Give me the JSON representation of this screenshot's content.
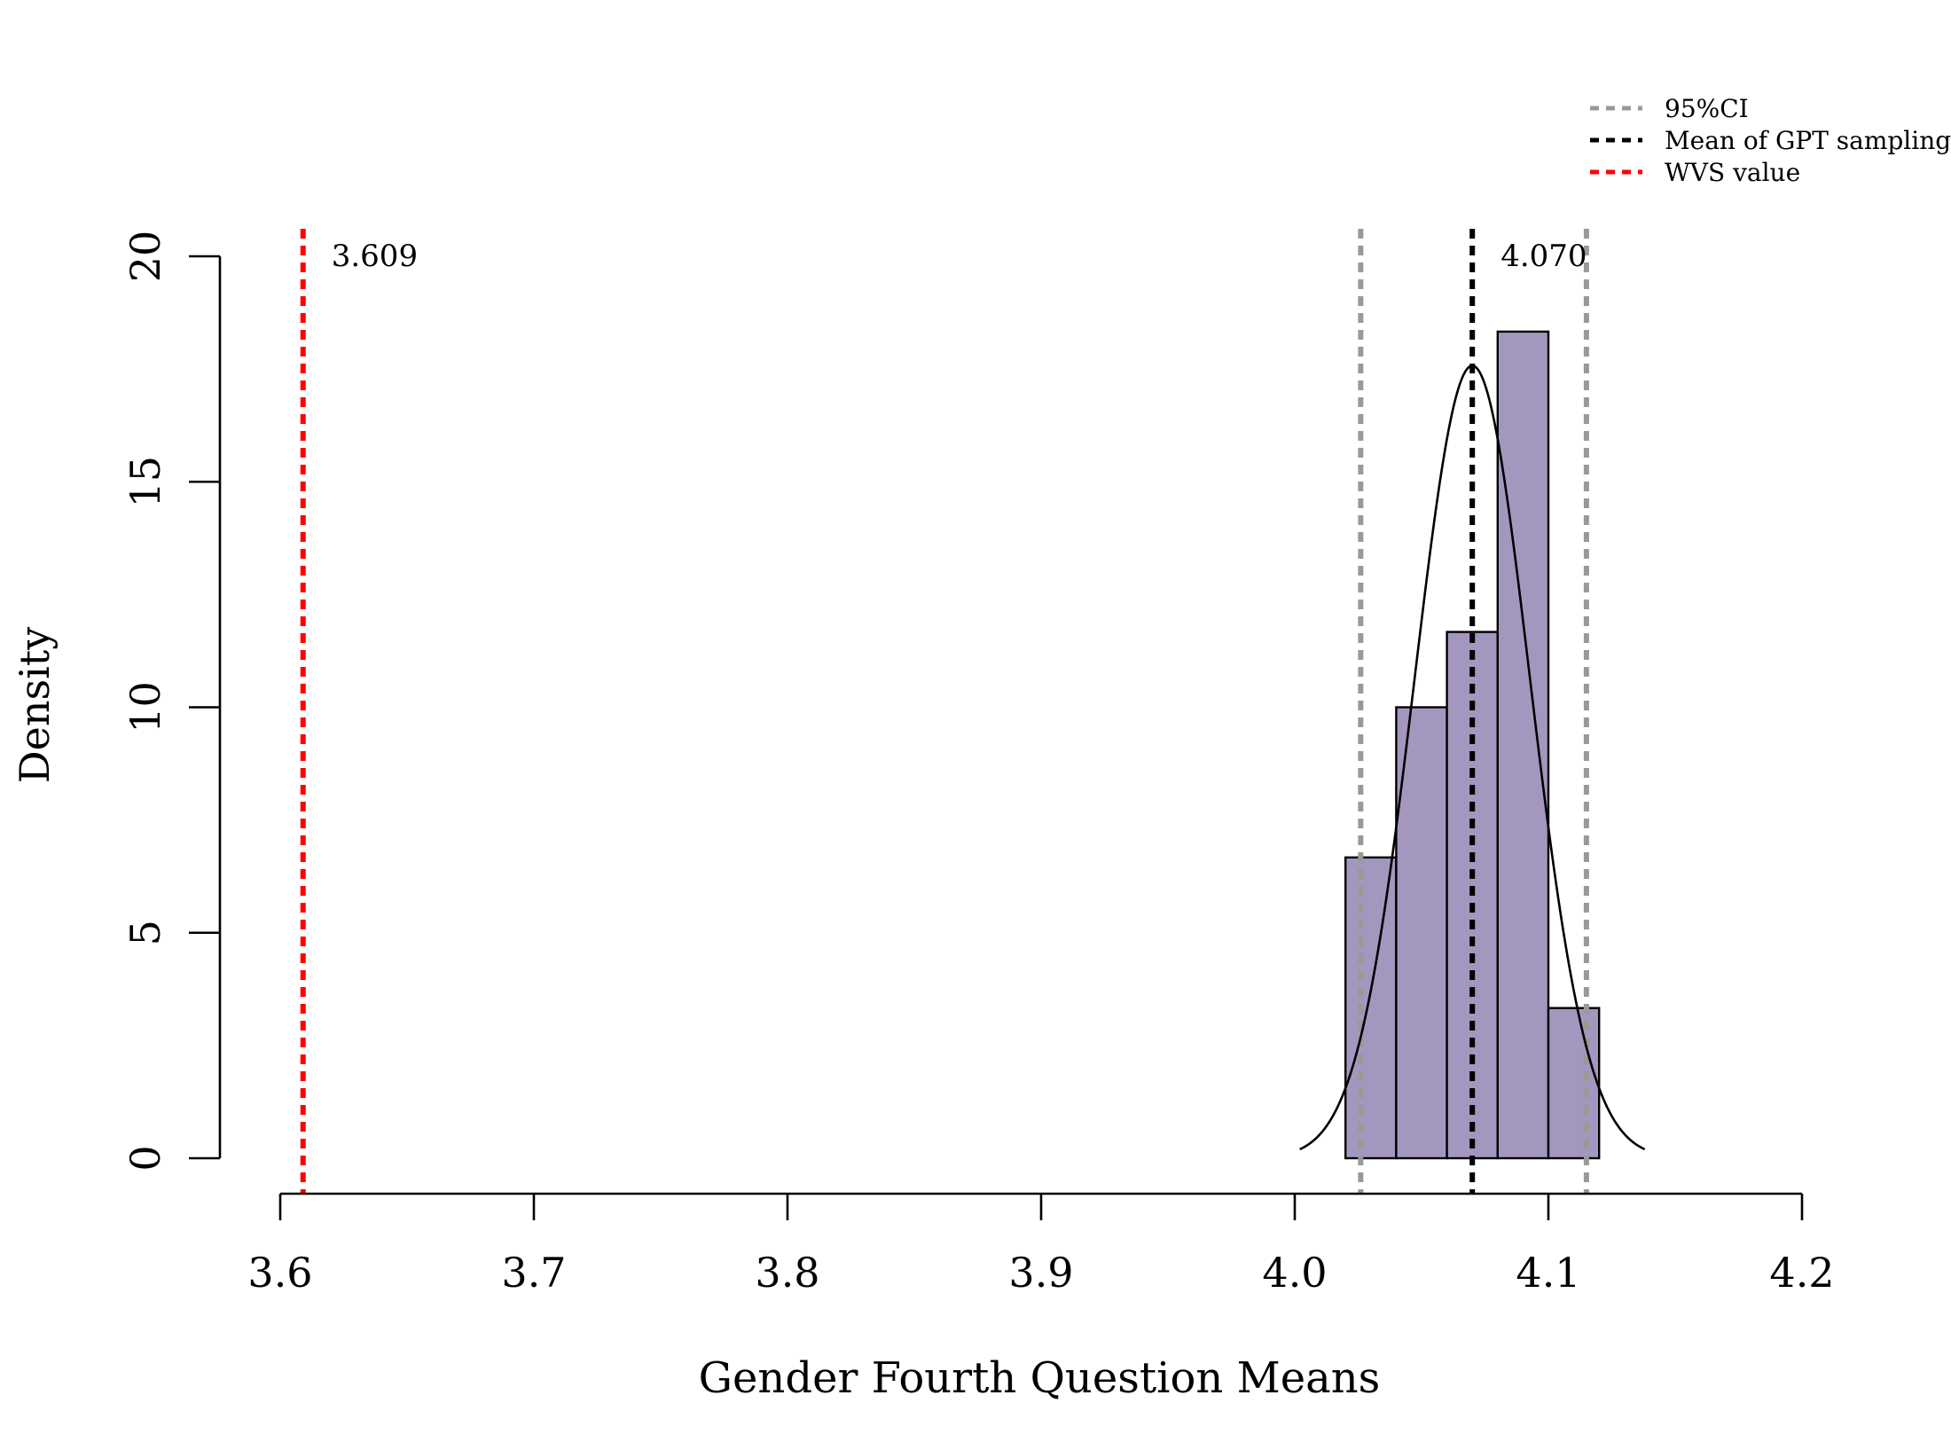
{
  "chart_data": {
    "type": "histogram",
    "xlabel": "Gender Fourth Question Means",
    "ylabel": "Density",
    "xlim": [
      3.6,
      4.2
    ],
    "ylim": [
      0,
      20
    ],
    "x_ticks": [
      3.6,
      3.7,
      3.8,
      3.9,
      4.0,
      4.1,
      4.2
    ],
    "x_tick_labels": [
      "3.6",
      "3.7",
      "3.8",
      "3.9",
      "4.0",
      "4.1",
      "4.2"
    ],
    "y_ticks": [
      0,
      5,
      10,
      15,
      20
    ],
    "y_tick_labels": [
      "0",
      "5",
      "10",
      "15",
      "20"
    ],
    "bins": [
      {
        "x0": 4.02,
        "x1": 4.04,
        "density": 6.67
      },
      {
        "x0": 4.04,
        "x1": 4.06,
        "density": 10.0
      },
      {
        "x0": 4.06,
        "x1": 4.08,
        "density": 11.67
      },
      {
        "x0": 4.08,
        "x1": 4.1,
        "density": 18.33
      },
      {
        "x0": 4.1,
        "x1": 4.12,
        "density": 3.33
      }
    ],
    "normal_curve": {
      "mean": 4.07,
      "sd": 0.0227,
      "x_range": [
        4.002,
        4.138
      ]
    },
    "reference_lines": [
      {
        "name": "ci-lower",
        "x": 4.026,
        "label_key": "ci"
      },
      {
        "name": "ci-upper",
        "x": 4.115,
        "label_key": "ci"
      },
      {
        "name": "gpt-mean",
        "x": 4.07,
        "label_key": "gpt"
      },
      {
        "name": "wvs-value",
        "x": 3.609,
        "label_key": "wvs"
      }
    ],
    "annotations": [
      {
        "name": "wvs-annotation",
        "text": "3.609",
        "x": 3.609
      },
      {
        "name": "gpt-mean-annotation",
        "text": "4.070",
        "x": 4.07
      }
    ],
    "legend": {
      "position": "top-right",
      "entries": [
        {
          "key": "ci",
          "label": "95%CI",
          "color": "#999999"
        },
        {
          "key": "gpt",
          "label": "Mean of GPT sampling",
          "color": "#000000"
        },
        {
          "key": "wvs",
          "label": "WVS value",
          "color": "#ff0000"
        }
      ]
    }
  },
  "colors": {
    "bar_fill": "#a397bf",
    "bar_stroke": "#000000",
    "curve": "#000000",
    "axis": "#000000"
  }
}
